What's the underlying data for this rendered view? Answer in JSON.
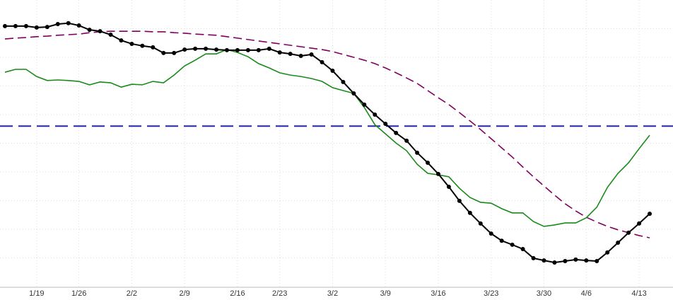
{
  "chart_data": {
    "type": "line",
    "categories": [
      null,
      null,
      null,
      "1/19",
      null,
      null,
      null,
      "1/26",
      null,
      null,
      null,
      null,
      "2/2",
      null,
      null,
      null,
      null,
      "2/9",
      null,
      null,
      null,
      null,
      "2/16",
      null,
      null,
      null,
      "2/23",
      null,
      null,
      null,
      null,
      "3/2",
      null,
      null,
      null,
      null,
      "3/9",
      null,
      null,
      null,
      null,
      "3/16",
      null,
      null,
      null,
      null,
      "3/23",
      null,
      null,
      null,
      null,
      "3/30",
      null,
      null,
      null,
      "4/6",
      null,
      null,
      null,
      null,
      "4/13",
      null
    ],
    "series": [
      {
        "color": "#000000",
        "dash": false,
        "markers": true,
        "values": [
          90.9,
          90.9,
          90.9,
          90.4,
          90.6,
          91.6,
          91.9,
          91.1,
          89.6,
          89.1,
          87.9,
          85.9,
          84.7,
          84.0,
          83.5,
          81.5,
          81.5,
          82.7,
          83.0,
          83.0,
          82.7,
          82.5,
          82.5,
          82.5,
          82.5,
          83.0,
          81.7,
          81.2,
          80.5,
          81.0,
          78.3,
          75.3,
          71.4,
          67.4,
          63.5,
          60.0,
          56.8,
          53.6,
          50.9,
          46.7,
          43.2,
          39.3,
          34.8,
          29.9,
          25.7,
          22.0,
          18.5,
          16.0,
          14.6,
          13.1,
          9.9,
          9.1,
          8.4,
          8.9,
          9.4,
          9.1,
          8.9,
          11.9,
          15.3,
          18.8,
          22.0,
          25.4
        ]
      },
      {
        "color": "#1a8a1a",
        "dash": false,
        "markers": false,
        "values": [
          74.8,
          75.8,
          75.8,
          73.3,
          71.9,
          72.1,
          71.9,
          71.6,
          70.4,
          71.4,
          71.1,
          69.6,
          70.6,
          70.4,
          71.6,
          71.1,
          73.8,
          77.0,
          79.0,
          81.2,
          81.2,
          82.7,
          81.7,
          80.2,
          77.8,
          76.3,
          74.6,
          73.8,
          73.3,
          72.6,
          71.6,
          69.4,
          68.4,
          67.4,
          62.5,
          56.5,
          53.3,
          50.1,
          47.4,
          42.7,
          39.5,
          39.0,
          38.3,
          34.3,
          31.1,
          29.4,
          29.1,
          27.2,
          25.7,
          25.7,
          22.7,
          21.0,
          21.5,
          22.2,
          22.2,
          24.0,
          27.7,
          34.6,
          39.5,
          43.2,
          48.1,
          52.8
        ]
      },
      {
        "color": "#800060",
        "dash": true,
        "markers": false,
        "values": [
          86.4,
          86.7,
          86.9,
          87.2,
          87.4,
          87.7,
          87.9,
          88.1,
          88.6,
          88.9,
          89.1,
          89.1,
          89.1,
          89.1,
          88.9,
          88.9,
          88.6,
          88.4,
          88.1,
          87.9,
          87.7,
          87.2,
          86.7,
          86.2,
          85.7,
          85.2,
          84.7,
          84.2,
          83.7,
          83.2,
          82.7,
          82.0,
          81.0,
          80.0,
          79.0,
          77.8,
          76.3,
          74.6,
          72.8,
          70.9,
          68.4,
          65.9,
          63.5,
          60.7,
          57.8,
          54.8,
          51.6,
          48.4,
          45.2,
          41.7,
          38.3,
          35.1,
          31.9,
          28.9,
          26.4,
          24.2,
          22.5,
          21.0,
          19.8,
          18.8,
          17.8,
          17.0
        ]
      }
    ],
    "reference_line": {
      "value": 56.0,
      "color": "#2222cc"
    },
    "ylim": [
      0,
      100
    ],
    "grid": true
  }
}
